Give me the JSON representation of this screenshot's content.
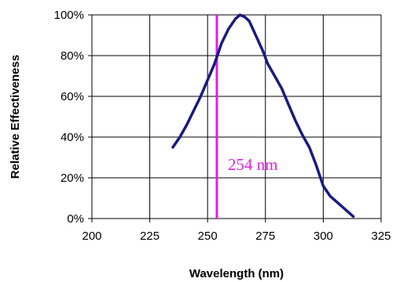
{
  "chart_data": {
    "type": "line",
    "title": "",
    "xlabel": "Wavelength (nm)",
    "ylabel": "Relative Effectiveness",
    "xlim": [
      200,
      325
    ],
    "ylim": [
      0,
      100
    ],
    "x_ticks": [
      200,
      225,
      250,
      275,
      300,
      325
    ],
    "y_ticks": [
      0,
      20,
      40,
      60,
      80,
      100
    ],
    "x_tick_labels": [
      "200",
      "225",
      "250",
      "275",
      "300",
      "325"
    ],
    "y_tick_labels": [
      "0%",
      "20%",
      "40%",
      "60%",
      "80%",
      "100%"
    ],
    "grid": true,
    "legend": "none",
    "series": [
      {
        "color": "#1a1a80",
        "x": [
          235,
          238,
          241,
          244,
          247,
          250,
          253,
          256,
          259,
          262,
          264,
          266,
          268,
          270,
          272,
          274,
          276,
          279,
          282,
          285,
          288,
          291,
          294,
          297,
          300,
          303,
          306,
          309,
          313
        ],
        "y": [
          35,
          40,
          46,
          53,
          60,
          68,
          76,
          86,
          93,
          98,
          100,
          99,
          97,
          92,
          87,
          82,
          76,
          70,
          64,
          56,
          48,
          41,
          35,
          26,
          16,
          11,
          8,
          5,
          1
        ]
      }
    ],
    "annotations": [
      {
        "type": "vline",
        "x": 254,
        "color": "#e020e0",
        "label": "254 nm"
      }
    ]
  }
}
